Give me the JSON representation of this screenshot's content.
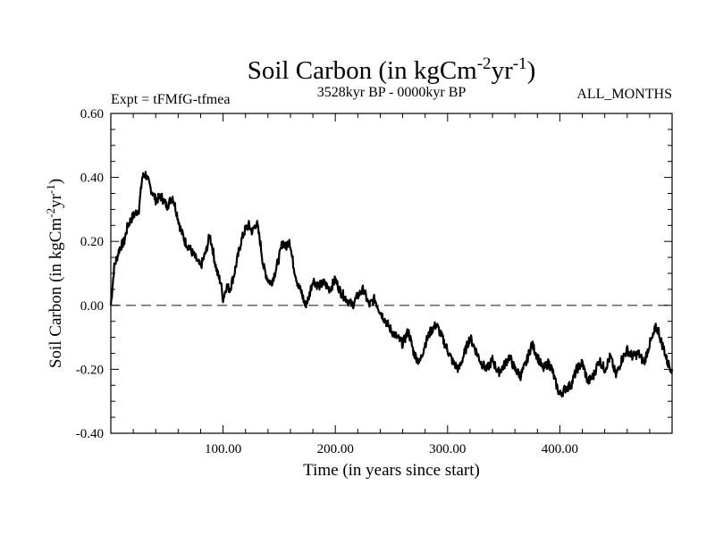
{
  "chart_data": {
    "type": "line",
    "title": "Soil Carbon (in kgCm",
    "title_sup1": "-2",
    "title_mid": "yr",
    "title_sup2": "-1",
    "title_end": ")",
    "subtitle_left": "Expt = tFMfG-tfmea",
    "subtitle_center": "3528kyr BP - 0000kyr BP",
    "subtitle_right": "ALL_MONTHS",
    "xlabel": "Time (in years since start)",
    "ylabel_parts": [
      "Soil Carbon (in kgCm",
      "-2",
      "yr",
      "-1",
      ")"
    ],
    "xlim": [
      0,
      500
    ],
    "ylim": [
      -0.4,
      0.6
    ],
    "xticks": [
      100,
      200,
      300,
      400
    ],
    "xtick_labels": [
      "100.00",
      "200.00",
      "300.00",
      "400.00"
    ],
    "yticks": [
      -0.4,
      -0.2,
      0.0,
      0.2,
      0.4,
      0.6
    ],
    "ytick_labels": [
      "-0.40",
      "-0.20",
      "0.00",
      "0.20",
      "0.40",
      "0.60"
    ],
    "zero_line": 0.0,
    "series": [
      {
        "name": "Soil Carbon",
        "color": "#000000",
        "x": [
          0,
          3,
          8,
          12,
          15,
          20,
          25,
          28,
          31,
          35,
          40,
          45,
          50,
          55,
          58,
          62,
          66,
          70,
          75,
          80,
          85,
          88,
          90,
          93,
          95,
          98,
          100,
          103,
          106,
          110,
          113,
          116,
          120,
          123,
          126,
          130,
          133,
          136,
          140,
          143,
          146,
          150,
          153,
          156,
          159,
          161,
          163,
          167,
          170,
          173,
          176,
          180,
          185,
          190,
          195,
          200,
          205,
          210,
          215,
          220,
          225,
          230,
          235,
          240,
          245,
          250,
          255,
          260,
          265,
          270,
          275,
          280,
          285,
          290,
          295,
          300,
          305,
          310,
          315,
          320,
          325,
          330,
          335,
          340,
          345,
          350,
          355,
          360,
          365,
          370,
          375,
          380,
          385,
          390,
          393,
          396,
          400,
          405,
          410,
          415,
          420,
          425,
          430,
          435,
          440,
          445,
          450,
          455,
          460,
          465,
          470,
          475,
          480,
          483,
          485,
          488,
          490,
          493,
          496,
          500
        ],
        "y": [
          0.0,
          0.12,
          0.18,
          0.2,
          0.25,
          0.28,
          0.3,
          0.4,
          0.41,
          0.37,
          0.33,
          0.34,
          0.31,
          0.34,
          0.3,
          0.24,
          0.2,
          0.18,
          0.15,
          0.12,
          0.17,
          0.22,
          0.19,
          0.13,
          0.1,
          0.07,
          0.02,
          0.06,
          0.05,
          0.1,
          0.15,
          0.2,
          0.24,
          0.25,
          0.23,
          0.26,
          0.2,
          0.12,
          0.08,
          0.07,
          0.1,
          0.15,
          0.2,
          0.18,
          0.21,
          0.16,
          0.12,
          0.06,
          0.04,
          0.0,
          0.02,
          0.08,
          0.06,
          0.07,
          0.05,
          0.08,
          0.04,
          0.02,
          0.0,
          0.03,
          0.05,
          0.0,
          0.02,
          -0.02,
          -0.05,
          -0.08,
          -0.1,
          -0.12,
          -0.08,
          -0.15,
          -0.18,
          -0.12,
          -0.08,
          -0.06,
          -0.1,
          -0.14,
          -0.18,
          -0.2,
          -0.15,
          -0.1,
          -0.14,
          -0.18,
          -0.2,
          -0.17,
          -0.21,
          -0.19,
          -0.16,
          -0.2,
          -0.22,
          -0.18,
          -0.12,
          -0.16,
          -0.2,
          -0.18,
          -0.2,
          -0.24,
          -0.28,
          -0.26,
          -0.25,
          -0.2,
          -0.18,
          -0.24,
          -0.22,
          -0.17,
          -0.2,
          -0.16,
          -0.22,
          -0.17,
          -0.14,
          -0.16,
          -0.15,
          -0.18,
          -0.12,
          -0.1,
          -0.07,
          -0.08,
          -0.11,
          -0.14,
          -0.18,
          -0.2
        ]
      }
    ]
  }
}
